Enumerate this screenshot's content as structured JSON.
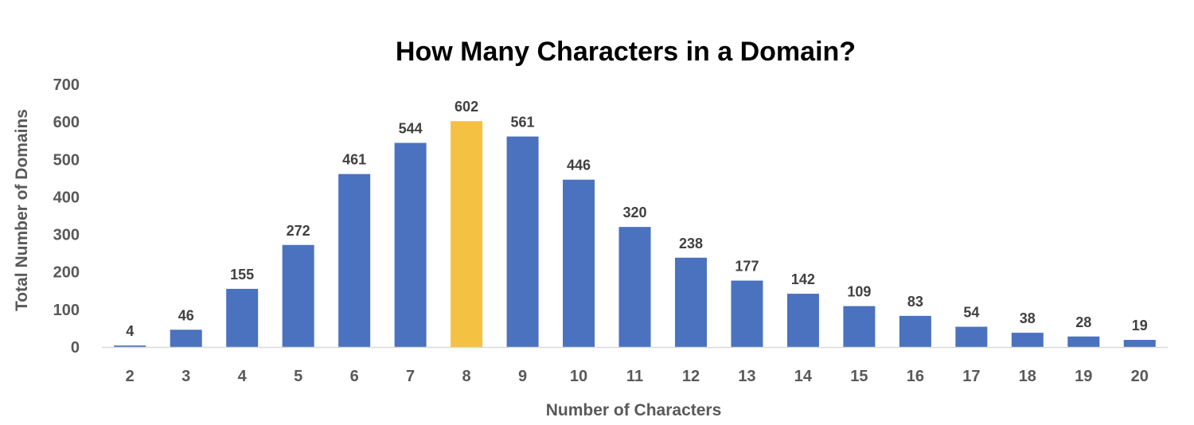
{
  "chart_data": {
    "type": "bar",
    "title": "How Many Characters in a Domain?",
    "xlabel": "Number of Characters",
    "ylabel": "Total Number of Domains",
    "categories": [
      "2",
      "3",
      "4",
      "5",
      "6",
      "7",
      "8",
      "9",
      "10",
      "11",
      "12",
      "13",
      "14",
      "15",
      "16",
      "17",
      "18",
      "19",
      "20"
    ],
    "series": [
      {
        "values": [
          4,
          46,
          155,
          272,
          461,
          544,
          602,
          561,
          446,
          320,
          238,
          177,
          142,
          109,
          83,
          54,
          38,
          28,
          19
        ]
      }
    ],
    "highlight_category": "8",
    "ylim": [
      0,
      700
    ],
    "yticks": [
      0,
      100,
      200,
      300,
      400,
      500,
      600,
      700
    ],
    "grid": false,
    "legend": "none",
    "data_labels": true,
    "colors": {
      "bar": "#4A72BE",
      "highlight": "#F5C142",
      "axis_line": "#D9D9D9",
      "text": "#595959",
      "label": "#404040",
      "title": "#000000"
    }
  }
}
